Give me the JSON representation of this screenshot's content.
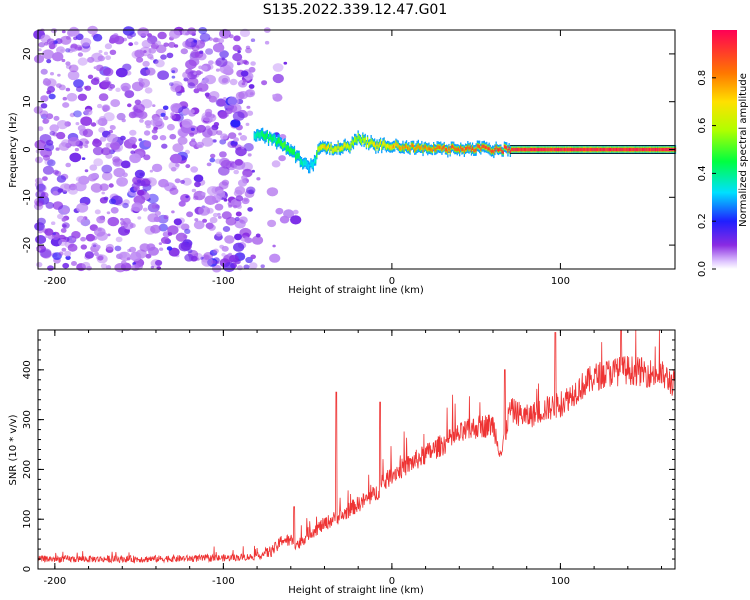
{
  "title": "S135.2022.339.12.47.G01",
  "chart_data": [
    {
      "type": "heatmap",
      "title": "",
      "xlabel": "Height of straight line (km)",
      "ylabel": "Frequency (Hz)",
      "xlim": [
        -210,
        168
      ],
      "ylim": [
        -25,
        25
      ],
      "xticks": [
        -200,
        -100,
        0,
        100
      ],
      "yticks": [
        -20,
        -10,
        0,
        10,
        20
      ],
      "colorbar": {
        "label": "Normalized spectral amplitude",
        "range": [
          0.0,
          1.0
        ],
        "ticks": [
          0.0,
          0.2,
          0.4,
          0.6,
          0.8
        ],
        "tick_labels": [
          "0.0",
          "0.2",
          "0.4",
          "0.6",
          "0.8"
        ]
      },
      "ridge": {
        "description": "signal ridge of peak amplitude",
        "x": [
          -82,
          -75,
          -70,
          -65,
          -60,
          -55,
          -50,
          -46,
          -44,
          -40,
          -35,
          -30,
          -25,
          -20,
          -15,
          -10,
          -5,
          0,
          10,
          20,
          30,
          40,
          50,
          60,
          70,
          80,
          100,
          120,
          140,
          168
        ],
        "y": [
          3.0,
          2.8,
          2.0,
          1.0,
          -0.5,
          -2.0,
          -3.5,
          -2.5,
          0.5,
          0.8,
          0.2,
          0.5,
          0.8,
          2.5,
          1.5,
          0.8,
          1.2,
          0.8,
          0.5,
          0.2,
          0.0,
          0.2,
          0.2,
          0.0,
          0.0,
          0.0,
          0.0,
          0.0,
          0.0,
          0.0
        ],
        "amplitude": [
          0.35,
          0.45,
          0.4,
          0.5,
          0.45,
          0.4,
          0.3,
          0.35,
          0.6,
          0.75,
          0.65,
          0.7,
          0.6,
          0.55,
          0.6,
          0.7,
          0.65,
          0.75,
          0.8,
          0.8,
          0.85,
          0.85,
          0.9,
          0.9,
          0.95,
          0.95,
          0.95,
          0.95,
          0.95,
          0.95
        ]
      },
      "noise_region_x": [
        -210,
        -82
      ],
      "noise_amplitude_range": [
        0.05,
        0.2
      ]
    },
    {
      "type": "line",
      "title": "",
      "xlabel": "Height of straight line (km)",
      "ylabel": "SNR (10 * v/v)",
      "xlim": [
        -210,
        168
      ],
      "ylim": [
        0,
        480
      ],
      "xticks": [
        -200,
        -100,
        0,
        100
      ],
      "yticks": [
        0,
        100,
        200,
        300,
        400
      ],
      "color": "#ee3333",
      "series": [
        {
          "name": "",
          "x": [
            -210,
            -180,
            -150,
            -120,
            -100,
            -80,
            -72,
            -68,
            -65,
            -60,
            -55,
            -50,
            -45,
            -40,
            -35,
            -30,
            -25,
            -20,
            -15,
            -10,
            -5,
            0,
            10,
            20,
            30,
            40,
            50,
            60,
            65,
            70,
            80,
            90,
            100,
            110,
            120,
            130,
            140,
            150,
            160,
            168
          ],
          "y": [
            20,
            20,
            20,
            21,
            22,
            25,
            35,
            45,
            60,
            55,
            50,
            70,
            80,
            90,
            100,
            105,
            120,
            130,
            140,
            150,
            170,
            190,
            210,
            230,
            250,
            270,
            285,
            290,
            230,
            320,
            305,
            320,
            330,
            360,
            385,
            395,
            400,
            395,
            390,
            370
          ],
          "spikes": [
            {
              "x": -33,
              "y": 355
            },
            {
              "x": -7,
              "y": 335
            },
            {
              "x": -58,
              "y": 125
            },
            {
              "x": 67,
              "y": 400
            },
            {
              "x": 97,
              "y": 475
            },
            {
              "x": 136,
              "y": 480
            }
          ],
          "noise_amplitude": 10
        }
      ]
    }
  ]
}
